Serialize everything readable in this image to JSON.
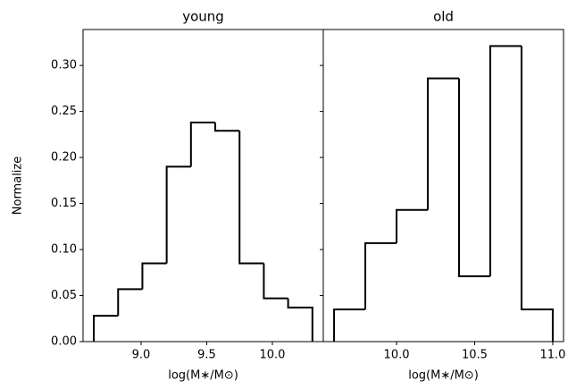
{
  "chart_data": [
    {
      "type": "histogram",
      "title": "young",
      "xlabel": "log(M∗/M⊙)",
      "ylabel": "Normalize",
      "bins": [
        8.64,
        8.825,
        9.01,
        9.195,
        9.38,
        9.565,
        9.75,
        9.935,
        10.12,
        10.305
      ],
      "counts": [
        0.028,
        0.057,
        0.085,
        0.19,
        0.238,
        0.229,
        0.085,
        0.047,
        0.037
      ],
      "color": "#000000",
      "xlim": [
        8.558,
        10.388
      ],
      "xticks": [
        {
          "value": 9.0,
          "label": "9.0"
        },
        {
          "value": 9.5,
          "label": "9.5"
        },
        {
          "value": 10.0,
          "label": "10.0"
        }
      ],
      "ylim": [
        0,
        0.339
      ],
      "yticks": [
        {
          "value": 0,
          "label": "0.00"
        },
        {
          "value": 0.05,
          "label": "0.05"
        },
        {
          "value": 0.1,
          "label": "0.10"
        },
        {
          "value": 0.15,
          "label": "0.15"
        },
        {
          "value": 0.2,
          "label": "0.20"
        },
        {
          "value": 0.25,
          "label": "0.25"
        },
        {
          "value": 0.3,
          "label": "0.30"
        }
      ]
    },
    {
      "type": "histogram",
      "title": "old",
      "xlabel": "log(M∗/M⊙)",
      "bins": [
        9.6,
        9.8,
        10.0,
        10.2,
        10.4,
        10.6,
        10.8,
        11.0
      ],
      "counts": [
        0.035,
        0.107,
        0.143,
        0.286,
        0.071,
        0.321,
        0.035
      ],
      "color": "#000000",
      "xlim": [
        9.531,
        11.069
      ],
      "xticks": [
        {
          "value": 10.0,
          "label": "10.0"
        },
        {
          "value": 10.5,
          "label": "10.5"
        },
        {
          "value": 11.0,
          "label": "11.0"
        }
      ],
      "ylim": [
        0,
        0.339
      ],
      "yticks": [
        0,
        0.05,
        0.1,
        0.15,
        0.2,
        0.25,
        0.3
      ]
    }
  ]
}
